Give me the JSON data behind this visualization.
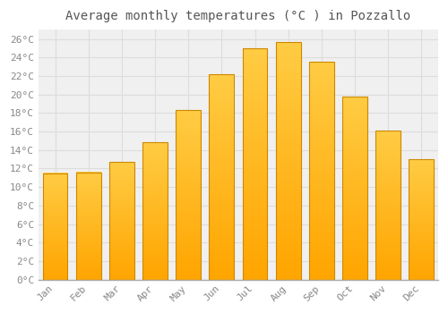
{
  "title": "Average monthly temperatures (°C ) in Pozzallo",
  "months": [
    "Jan",
    "Feb",
    "Mar",
    "Apr",
    "May",
    "Jun",
    "Jul",
    "Aug",
    "Sep",
    "Oct",
    "Nov",
    "Dec"
  ],
  "values": [
    11.5,
    11.6,
    12.7,
    14.8,
    18.3,
    22.2,
    25.0,
    25.7,
    23.5,
    19.8,
    16.1,
    13.0
  ],
  "bar_color_top": "#FFCC44",
  "bar_color_bottom": "#FFA500",
  "bar_edge_color": "#CC8800",
  "ylim": [
    0,
    27
  ],
  "yticks": [
    0,
    2,
    4,
    6,
    8,
    10,
    12,
    14,
    16,
    18,
    20,
    22,
    24,
    26
  ],
  "background_color": "#ffffff",
  "plot_bg_color": "#f0f0f0",
  "title_fontsize": 10,
  "tick_fontsize": 8,
  "grid_color": "#dddddd",
  "tick_color": "#888888",
  "title_color": "#555555"
}
